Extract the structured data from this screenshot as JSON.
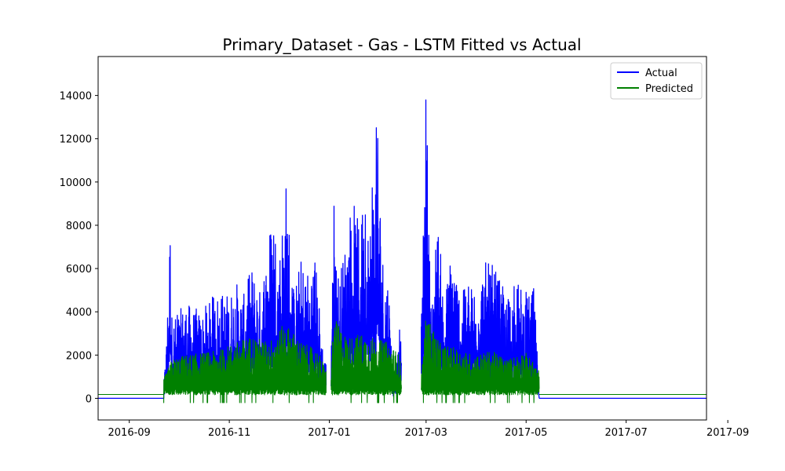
{
  "chart_data": {
    "type": "line",
    "title": "Primary_Dataset - Gas - LSTM Fitted vs Actual",
    "xlabel": "",
    "ylabel": "",
    "x_range": [
      "2016-08-13",
      "2017-08-19"
    ],
    "ylim": [
      -1000,
      15800
    ],
    "x_ticks": [
      "2016-09",
      "2016-11",
      "2017-01",
      "2017-03",
      "2017-05",
      "2017-07",
      "2017-09"
    ],
    "y_ticks": [
      0,
      2000,
      4000,
      6000,
      8000,
      10000,
      12000,
      14000
    ],
    "grid": false,
    "legend_position": "top-right",
    "series": [
      {
        "name": "Actual",
        "color": "#0000ff",
        "x": [
          "2016-08-13",
          "2016-09-22",
          "2016-09-24",
          "2016-09-26",
          "2016-09-27",
          "2016-09-30",
          "2016-10-05",
          "2016-10-10",
          "2016-10-15",
          "2016-10-20",
          "2016-10-25",
          "2016-11-01",
          "2016-11-05",
          "2016-11-10",
          "2016-11-15",
          "2016-11-20",
          "2016-11-25",
          "2016-11-28",
          "2016-12-01",
          "2016-12-04",
          "2016-12-06",
          "2016-12-10",
          "2016-12-15",
          "2016-12-20",
          "2016-12-23",
          "2016-12-28",
          "2017-01-02",
          "2017-01-03",
          "2017-01-07",
          "2017-01-11",
          "2017-01-15",
          "2017-01-18",
          "2017-01-22",
          "2017-01-26",
          "2017-01-30",
          "2017-02-03",
          "2017-02-06",
          "2017-02-09",
          "2017-02-12",
          "2017-02-16",
          "2017-02-22",
          "2017-02-26",
          "2017-03-01",
          "2017-03-04",
          "2017-03-08",
          "2017-03-12",
          "2017-03-17",
          "2017-03-22",
          "2017-03-28",
          "2017-04-05",
          "2017-04-12",
          "2017-04-19",
          "2017-04-26",
          "2017-05-02",
          "2017-05-06",
          "2017-05-09",
          "2017-08-19"
        ],
        "values": [
          0,
          500,
          3400,
          8750,
          4000,
          3800,
          4500,
          4200,
          4000,
          4500,
          5000,
          4900,
          5500,
          4800,
          6200,
          5000,
          7800,
          9300,
          6500,
          9200,
          10500,
          5000,
          6600,
          5900,
          7100,
          2500,
          600,
          10400,
          5500,
          7600,
          9600,
          8300,
          8500,
          8400,
          12900,
          6200,
          5900,
          800,
          2100,
          7200,
          9400,
          3300,
          15000,
          4500,
          8500,
          4500,
          7400,
          4900,
          5200,
          6300,
          6100,
          4700,
          5400,
          4800,
          5100,
          0,
          0
        ]
      },
      {
        "name": "Predicted",
        "color": "#008000",
        "x": [
          "2016-08-13",
          "2016-09-22",
          "2016-09-27",
          "2016-10-05",
          "2016-10-15",
          "2016-10-25",
          "2016-11-05",
          "2016-11-15",
          "2016-11-25",
          "2016-12-05",
          "2016-12-15",
          "2016-12-25",
          "2017-01-01",
          "2017-01-04",
          "2017-01-12",
          "2017-01-20",
          "2017-01-28",
          "2017-02-05",
          "2017-02-12",
          "2017-02-16",
          "2017-02-26",
          "2017-03-01",
          "2017-03-10",
          "2017-03-20",
          "2017-03-30",
          "2017-04-10",
          "2017-04-20",
          "2017-04-30",
          "2017-05-09",
          "2017-08-19"
        ],
        "values": [
          180,
          900,
          1800,
          2000,
          2100,
          2200,
          2600,
          2900,
          2600,
          3500,
          2600,
          2200,
          1000,
          3700,
          2800,
          3000,
          2800,
          2600,
          2100,
          900,
          1000,
          3900,
          2500,
          2300,
          2000,
          2200,
          1800,
          2200,
          1300,
          180
        ]
      }
    ]
  }
}
